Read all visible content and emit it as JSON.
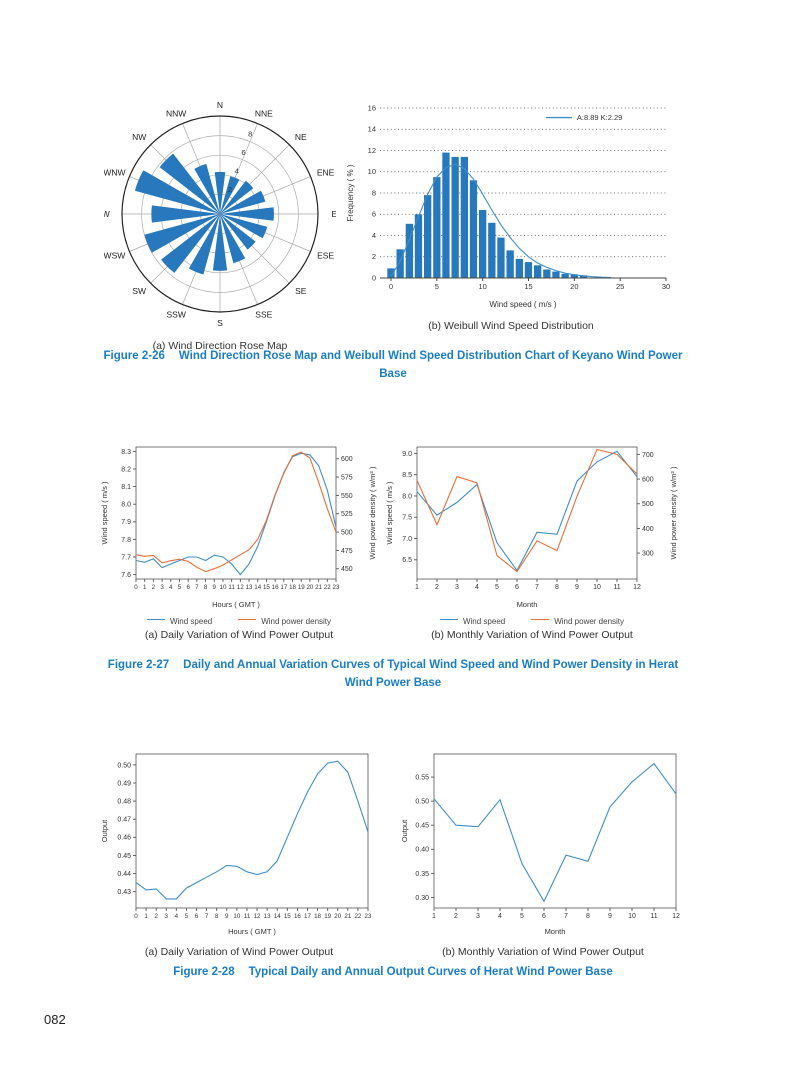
{
  "page": {
    "number": "082"
  },
  "colors": {
    "bar_blue": "#2878be",
    "line_blue": "#3f8ec8",
    "line_orange": "#e2703a",
    "caption_blue": "#1a7dc5"
  },
  "figures": {
    "fig_2_26": {
      "label": "Figure 2-26",
      "title": "Wind Direction Rose Map and Weibull Wind Speed Distribution Chart of Keyano Wind Power Base"
    },
    "fig_2_27": {
      "label": "Figure 2-27",
      "title": "Daily and Annual Variation Curves of Typical Wind Speed and Wind Power Density in Herat Wind Power Base"
    },
    "fig_2_28": {
      "label": "Figure 2-28",
      "title": "Typical Daily and Annual Output Curves of Herat Wind Power Base"
    }
  },
  "chart_data": [
    {
      "id": "rose",
      "type": "rose",
      "title": "(a) Wind Direction Rose Map",
      "directions": [
        "N",
        "NNE",
        "NE",
        "ENE",
        "E",
        "ESE",
        "SE",
        "SSE",
        "S",
        "SSW",
        "SW",
        "WSW",
        "W",
        "WNW",
        "NW",
        "NNW"
      ],
      "values": [
        4.3,
        4.0,
        4.3,
        4.8,
        5.5,
        5.0,
        4.6,
        5.2,
        5.8,
        6.4,
        7.6,
        8.0,
        7.0,
        9.0,
        7.8,
        5.3
      ],
      "ring_ticks": [
        "2",
        "4",
        "6",
        "8"
      ],
      "rmax": 10
    },
    {
      "id": "weibull",
      "type": "bar",
      "title": "(b) Weibull Wind Speed Distribution",
      "xlabel": "Wind speed ( m/s )",
      "ylabel": "Frequency ( % )",
      "legend": "A:8.89 K:2.29",
      "xlim": [
        -1.2,
        30
      ],
      "ylim": [
        0,
        16
      ],
      "x_ticks": [
        0,
        5,
        10,
        15,
        20,
        25,
        30
      ],
      "y_ticks": [
        0,
        2,
        4,
        6,
        8,
        10,
        12,
        14,
        16
      ],
      "bar_x": [
        0,
        1,
        2,
        3,
        4,
        5,
        6,
        7,
        8,
        9,
        10,
        11,
        12,
        13,
        14,
        15,
        16,
        17,
        18,
        19,
        20,
        21
      ],
      "bar_values": [
        0.9,
        2.7,
        5.1,
        6.0,
        7.8,
        9.5,
        11.8,
        11.4,
        11.4,
        9.2,
        6.4,
        5.2,
        3.8,
        2.6,
        1.8,
        1.5,
        1.2,
        0.8,
        0.6,
        0.4,
        0.35,
        0.25
      ],
      "curve": {
        "x": [
          0,
          1,
          2,
          3,
          4,
          5,
          6,
          7,
          8,
          9,
          10,
          11,
          12,
          13,
          14,
          15,
          16,
          17,
          18,
          19,
          20,
          21,
          22,
          23,
          24
        ],
        "y": [
          0.15,
          1.6,
          3.6,
          5.8,
          7.9,
          9.5,
          10.4,
          10.7,
          10.3,
          9.3,
          7.9,
          6.4,
          5.0,
          3.8,
          2.8,
          2.0,
          1.4,
          1.0,
          0.7,
          0.45,
          0.3,
          0.2,
          0.12,
          0.08,
          0.05
        ]
      }
    },
    {
      "id": "f227a",
      "type": "line",
      "title": "(a) Daily Variation of Wind Power Output",
      "xlabel": "Hours ( GMT )",
      "x_ticks": [
        "0",
        "1",
        "2",
        "3",
        "4",
        "5",
        "6",
        "7",
        "8",
        "9",
        "10",
        "11",
        "12",
        "13",
        "14",
        "15",
        "16",
        "17",
        "18",
        "19",
        "20",
        "21",
        "22",
        "23"
      ],
      "left": {
        "label": "Wind speed ( m/s )",
        "min": 7.575,
        "max": 8.325,
        "ticks": [
          "7.6",
          "7.7",
          "7.8",
          "7.9",
          "8.0",
          "8.1",
          "8.2",
          "8.3"
        ]
      },
      "right": {
        "label": "Wind power density ( w/m² )",
        "min": 436,
        "max": 616,
        "ticks": [
          "450",
          "475",
          "500",
          "525",
          "550",
          "575",
          "600"
        ]
      },
      "series": [
        {
          "name": "Wind speed",
          "axis": "left",
          "color_key": "line_blue",
          "values": [
            7.68,
            7.67,
            7.69,
            7.64,
            7.66,
            7.68,
            7.7,
            7.7,
            7.68,
            7.71,
            7.7,
            7.66,
            7.6,
            7.66,
            7.76,
            7.9,
            8.05,
            8.18,
            8.27,
            8.29,
            8.28,
            8.22,
            8.08,
            7.87
          ]
        },
        {
          "name": "Wind power density",
          "axis": "right",
          "color_key": "line_orange",
          "values": [
            469,
            467,
            468,
            458,
            461,
            463,
            460,
            452,
            446,
            450,
            455,
            462,
            469,
            476,
            490,
            516,
            551,
            580,
            604,
            609,
            601,
            568,
            532,
            500
          ]
        }
      ]
    },
    {
      "id": "f227b",
      "type": "line",
      "title": "(b) Monthly Variation of Wind Power Output",
      "xlabel": "Month",
      "x_ticks": [
        "1",
        "2",
        "3",
        "4",
        "5",
        "6",
        "7",
        "8",
        "9",
        "10",
        "11",
        "12"
      ],
      "left": {
        "label": "Wind speed ( m/s )",
        "min": 6.05,
        "max": 9.15,
        "ticks": [
          "6.5",
          "7.0",
          "7.5",
          "8.0",
          "8.5",
          "9.0"
        ]
      },
      "right": {
        "label": "Wind power density ( w/m² )",
        "min": 195,
        "max": 730,
        "ticks": [
          "300",
          "400",
          "500",
          "600",
          "700"
        ]
      },
      "series": [
        {
          "name": "Wind speed",
          "axis": "left",
          "color_key": "line_blue",
          "values": [
            8.1,
            7.55,
            7.85,
            8.27,
            6.9,
            6.25,
            7.15,
            7.1,
            8.35,
            8.8,
            9.05,
            8.45
          ]
        },
        {
          "name": "Wind power density",
          "axis": "right",
          "color_key": "line_orange",
          "values": [
            595,
            415,
            610,
            585,
            290,
            225,
            350,
            310,
            530,
            720,
            700,
            620
          ]
        }
      ]
    },
    {
      "id": "f228a",
      "type": "line",
      "title": "(a) Daily Variation of Wind Power Output",
      "xlabel": "Hours ( GMT )",
      "x_ticks": [
        "0",
        "1",
        "2",
        "3",
        "4",
        "5",
        "6",
        "7",
        "8",
        "9",
        "10",
        "11",
        "12",
        "13",
        "14",
        "15",
        "16",
        "17",
        "18",
        "19",
        "20",
        "21",
        "22",
        "23"
      ],
      "left": {
        "label": "Output",
        "min": 0.421,
        "max": 0.506,
        "ticks": [
          "0.43",
          "0.44",
          "0.45",
          "0.46",
          "0.47",
          "0.48",
          "0.49",
          "0.50"
        ]
      },
      "series": [
        {
          "name": "Output",
          "axis": "left",
          "color_key": "line_blue",
          "values": [
            0.435,
            0.431,
            0.4315,
            0.426,
            0.426,
            0.432,
            0.435,
            0.438,
            0.441,
            0.4445,
            0.444,
            0.441,
            0.4395,
            0.441,
            0.447,
            0.46,
            0.473,
            0.485,
            0.495,
            0.501,
            0.502,
            0.496,
            0.48,
            0.463
          ]
        }
      ]
    },
    {
      "id": "f228b",
      "type": "line",
      "title": "(b) Monthly Variation of Wind Power Output",
      "xlabel": "Month",
      "x_ticks": [
        "1",
        "2",
        "3",
        "4",
        "5",
        "6",
        "7",
        "8",
        "9",
        "10",
        "11",
        "12"
      ],
      "left": {
        "label": "Output",
        "min": 0.278,
        "max": 0.598,
        "ticks": [
          "0.30",
          "0.35",
          "0.40",
          "0.45",
          "0.50",
          "0.55"
        ]
      },
      "series": [
        {
          "name": "Output",
          "axis": "left",
          "color_key": "line_blue",
          "values": [
            0.505,
            0.45,
            0.447,
            0.503,
            0.37,
            0.292,
            0.388,
            0.375,
            0.488,
            0.54,
            0.578,
            0.515
          ]
        }
      ]
    }
  ]
}
